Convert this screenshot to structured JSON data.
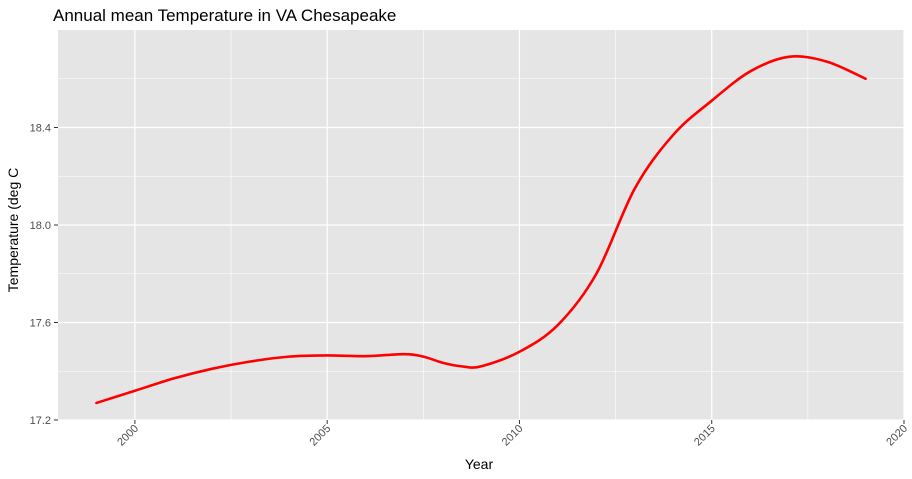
{
  "colors": {
    "panel_bg": "#e5e5e5",
    "grid": "#ffffff",
    "line": "#ff0000",
    "tick_text": "#4d4d4d"
  },
  "chart_data": {
    "type": "line",
    "title": "Annual mean Temperature in VA Chesapeake",
    "xlabel": "Year",
    "ylabel": "Temperature (deg C",
    "xlim": [
      1998,
      2020
    ],
    "ylim": [
      17.2,
      18.8
    ],
    "x_ticks": [
      2000,
      2005,
      2010,
      2015,
      2020
    ],
    "x_tick_labels": [
      "2000",
      "2005",
      "2010",
      "2015",
      "2020"
    ],
    "y_ticks": [
      17.2,
      17.6,
      18.0,
      18.4
    ],
    "y_tick_labels": [
      "17.2",
      "17.6",
      "18.0",
      "18.4"
    ],
    "grid": true,
    "legend": "none",
    "series": [
      {
        "x": [
          1999,
          2000,
          2001,
          2002,
          2003,
          2004,
          2005,
          2006,
          2007,
          2007.5,
          2008,
          2008.5,
          2009,
          2010,
          2011,
          2012,
          2013,
          2014,
          2015,
          2016,
          2017,
          2018,
          2019
        ],
        "values": [
          17.27,
          17.32,
          17.37,
          17.41,
          17.44,
          17.46,
          17.465,
          17.462,
          17.47,
          17.46,
          17.435,
          17.42,
          17.42,
          17.48,
          17.59,
          17.8,
          18.15,
          18.37,
          18.51,
          18.63,
          18.69,
          18.67,
          18.6
        ]
      }
    ]
  }
}
